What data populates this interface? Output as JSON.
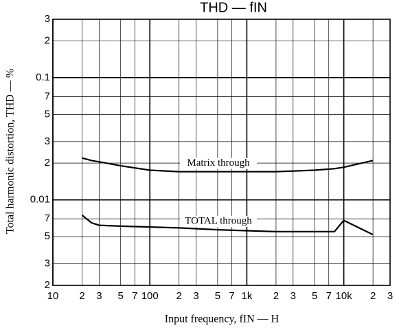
{
  "chart_data": {
    "type": "line",
    "title": "THD — fIN",
    "xlabel": "Input frequency, fIN — H",
    "ylabel": "Total harmonic distortion, THD — %",
    "xscale": "log",
    "yscale": "log",
    "grid": true,
    "xlim": [
      10,
      30000
    ],
    "ylim": [
      0.002,
      0.3
    ],
    "xticks": [
      10,
      {
        "value": 20,
        "label": "2"
      },
      {
        "value": 30,
        "label": "3"
      },
      {
        "value": 50,
        "label": "5"
      },
      {
        "value": 70,
        "label": "7"
      },
      100,
      {
        "value": 200,
        "label": "2"
      },
      {
        "value": 300,
        "label": "3"
      },
      {
        "value": 500,
        "label": "5"
      },
      {
        "value": 700,
        "label": "7"
      },
      {
        "value": 1000,
        "label": "1k"
      },
      {
        "value": 2000,
        "label": "2"
      },
      {
        "value": 3000,
        "label": "3"
      },
      {
        "value": 5000,
        "label": "5"
      },
      {
        "value": 7000,
        "label": "7"
      },
      {
        "value": 10000,
        "label": "10k"
      },
      {
        "value": 20000,
        "label": "2"
      },
      {
        "value": 30000,
        "label": "3"
      }
    ],
    "yticks": [
      {
        "value": 0.002,
        "label": "2"
      },
      {
        "value": 0.003,
        "label": "3"
      },
      {
        "value": 0.005,
        "label": "5"
      },
      {
        "value": 0.007,
        "label": "7"
      },
      0.01,
      {
        "value": 0.02,
        "label": "2"
      },
      {
        "value": 0.03,
        "label": "3"
      },
      {
        "value": 0.05,
        "label": "5"
      },
      {
        "value": 0.07,
        "label": "7"
      },
      0.1,
      {
        "value": 0.2,
        "label": "2"
      },
      {
        "value": 0.3,
        "label": "3"
      }
    ],
    "x": [
      20,
      25,
      30,
      50,
      100,
      200,
      500,
      1000,
      2000,
      5000,
      8000,
      10000,
      20000
    ],
    "series": [
      {
        "name": "Matrix through",
        "color": "#000000",
        "values": [
          0.022,
          0.021,
          0.0205,
          0.019,
          0.0175,
          0.017,
          0.017,
          0.017,
          0.017,
          0.0175,
          0.018,
          0.0185,
          0.021
        ]
      },
      {
        "name": "TOTAL through",
        "color": "#000000",
        "values": [
          0.0075,
          0.0065,
          0.0062,
          0.0061,
          0.006,
          0.0059,
          0.0057,
          0.0056,
          0.0055,
          0.0055,
          0.0055,
          0.0068,
          0.0052
        ]
      }
    ]
  }
}
